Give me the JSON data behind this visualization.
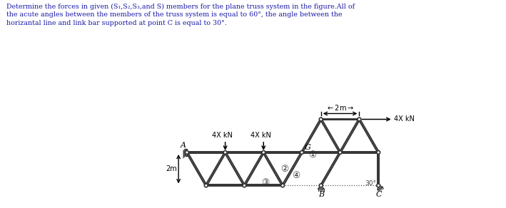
{
  "text_color": "#1a1aaa",
  "truss_color": "#333333",
  "lw": 1.4,
  "bg_color": "#ffffff",
  "title_line1": "Determine the forces in given (S₁,S₂,S₃,and S) members for the plane truss system in the figure.All of",
  "title_line2": "the acute angles between the members of the truss system is equal to 60°, the angle between the",
  "title_line3": "horizantal line and link bar supported at point C is equal to 30°.",
  "circled1": "①",
  "circled2": "②",
  "circled3": "③",
  "circled4": "④",
  "label_A": "A",
  "label_G": "G",
  "label_B": "B",
  "label_C": "C",
  "force_label": "4X kN",
  "dim_label": "✗2m✗",
  "dim2m": "2m",
  "angle_label": "30°"
}
